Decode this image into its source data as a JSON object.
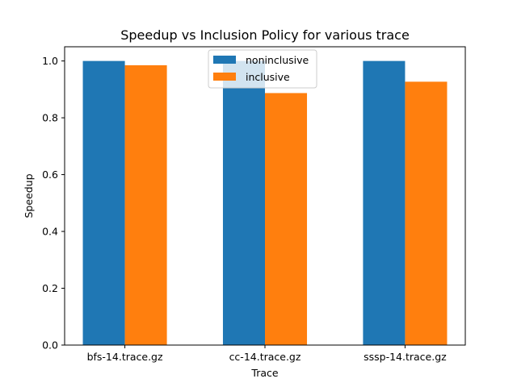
{
  "chart_data": {
    "type": "bar",
    "title": "Speedup vs Inclusion Policy for various trace",
    "xlabel": "Trace",
    "ylabel": "Speedup",
    "categories": [
      "bfs-14.trace.gz",
      "cc-14.trace.gz",
      "sssp-14.trace.gz"
    ],
    "series": [
      {
        "name": "noninclusive",
        "color": "#1f77b4",
        "values": [
          1.0,
          1.0,
          1.0
        ]
      },
      {
        "name": "inclusive",
        "color": "#ff7f0e",
        "values": [
          0.985,
          0.887,
          0.927
        ]
      }
    ],
    "ylim": [
      0,
      1.05
    ],
    "yticks": [
      0.0,
      0.2,
      0.4,
      0.6,
      0.8,
      1.0
    ],
    "ytick_labels": [
      "0.0",
      "0.2",
      "0.4",
      "0.6",
      "0.8",
      "1.0"
    ],
    "grid": false,
    "legend_position": "top-center"
  }
}
